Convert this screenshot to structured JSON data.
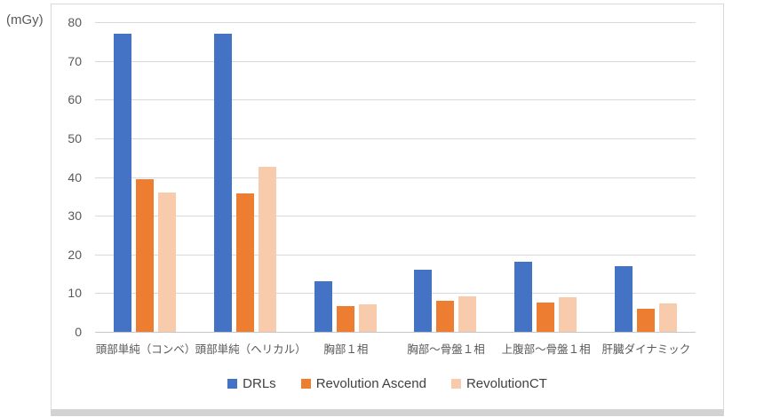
{
  "chart_data": {
    "type": "bar",
    "title": "",
    "unit_label": "(mGy)",
    "categories": [
      "頭部単純（コンベ）",
      "頭部単純（ヘリカル）",
      "胸部１相",
      "胸部～骨盤１相",
      "上腹部～骨盤１相",
      "肝臓ダイナミック"
    ],
    "series": [
      {
        "name": "DRLs",
        "color": "#4472C4",
        "values": [
          77,
          77,
          13.1,
          16,
          18.1,
          17
        ]
      },
      {
        "name": "Revolution Ascend",
        "color": "#ED7D31",
        "values": [
          39.4,
          35.7,
          6.7,
          8.1,
          7.5,
          6
        ]
      },
      {
        "name": "RevolutionCT",
        "color": "#F8CBAD",
        "values": [
          35.9,
          42.7,
          7.2,
          9.1,
          8.9,
          7.3
        ]
      }
    ],
    "ylim": [
      0,
      80
    ],
    "yticks": [
      0,
      10,
      20,
      30,
      40,
      50,
      60,
      70,
      80
    ],
    "grid": true,
    "legend_position": "bottom",
    "colors": {
      "gridline": "#D9D9D9",
      "axis_text": "#595959",
      "legend_text": "#404040",
      "frame_border": "#D9D9D9"
    }
  }
}
